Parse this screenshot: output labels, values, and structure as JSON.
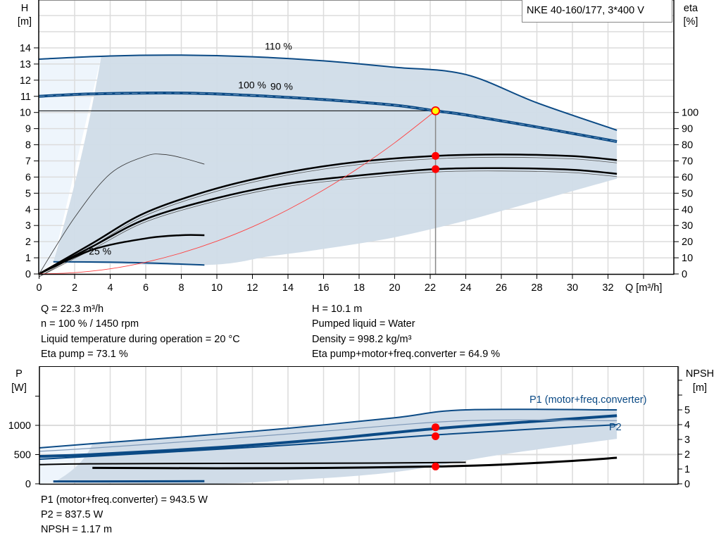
{
  "title": "NKE 40-160/177, 3*400 V",
  "colors": {
    "curve_blue": "#0b4a85",
    "band_fill": "#d0dce8",
    "light_fill": "#eef5fc",
    "duty_point": "#ff0000",
    "duty_point_fill": "#ffff00",
    "system_curve": "#ff4040"
  },
  "info_top": {
    "left": [
      "Q = 22.3 m³/h",
      "n = 100 % / 1450 rpm",
      "Liquid temperature during operation = 20 °C",
      "Eta pump = 73.1 %"
    ],
    "right": [
      "H = 10.1 m",
      "Pumped liquid = Water",
      "Density = 998.2 kg/m³",
      "Eta pump+motor+freq.converter = 64.9 %"
    ]
  },
  "info_bottom": [
    "P1 (motor+freq.converter) = 943.5 W",
    "P2 = 837.5 W",
    "NPSH = 1.17 m"
  ],
  "chart_data": [
    {
      "type": "line",
      "xlabel": "Q [m³/h]",
      "ylabel": "H [m]",
      "y2label": "eta [%]",
      "ylabel_parts": [
        "H",
        "[m]"
      ],
      "y2label_parts": [
        "eta",
        "[%]"
      ],
      "xlim": [
        0,
        35.7
      ],
      "ylim": [
        0,
        17
      ],
      "y2lim": [
        0,
        170
      ],
      "xticks": [
        0,
        2,
        4,
        6,
        8,
        10,
        12,
        14,
        16,
        18,
        20,
        22,
        24,
        26,
        28,
        30,
        32
      ],
      "yticks": [
        0,
        1,
        2,
        3,
        4,
        5,
        6,
        7,
        8,
        9,
        10,
        11,
        12,
        13,
        14
      ],
      "y2ticks": [
        0,
        10,
        20,
        30,
        40,
        50,
        60,
        70,
        80,
        90,
        100
      ],
      "grid": true,
      "annotations": [
        {
          "text": "110 %",
          "x": 12.7,
          "y": 13.9
        },
        {
          "text": "100 %",
          "x": 11.2,
          "y": 11.5
        },
        {
          "text": "90 %",
          "x": 11.3,
          "y": 11.4
        },
        {
          "text": "25 %",
          "x": 2.8,
          "y": 1.2
        }
      ],
      "series": [
        {
          "kind": "H",
          "speed": "110 %",
          "axis": "H",
          "x": [
            0,
            4,
            8,
            12,
            16,
            20,
            24,
            28,
            32.5
          ],
          "y": [
            13.3,
            13.5,
            13.55,
            13.45,
            13.2,
            12.8,
            12.35,
            10.6,
            8.9
          ]
        },
        {
          "kind": "H",
          "speed": "100 %",
          "axis": "H",
          "x": [
            0,
            3,
            8,
            12,
            16,
            20,
            22.3,
            24,
            28,
            32.5
          ],
          "y": [
            11.0,
            11.15,
            11.2,
            11.05,
            10.8,
            10.45,
            10.1,
            9.85,
            9.1,
            8.2
          ]
        },
        {
          "kind": "H",
          "speed": "25 %",
          "axis": "H",
          "x": [
            0.8,
            4,
            7,
            9.3
          ],
          "y": [
            0.75,
            0.73,
            0.65,
            0.55
          ]
        },
        {
          "kind": "eta pump",
          "axis": "eta",
          "x": [
            0,
            3,
            6,
            10,
            14,
            18,
            22.3,
            26,
            30,
            32.5
          ],
          "y": [
            0,
            19,
            38,
            53,
            63,
            69.5,
            73.1,
            74,
            73,
            70.5
          ]
        },
        {
          "kind": "eta pump+motor+freq.converter",
          "axis": "eta",
          "x": [
            0,
            3,
            6,
            10,
            14,
            18,
            22.3,
            26,
            30,
            32.5
          ],
          "y": [
            0,
            17,
            34,
            47,
            56,
            61,
            64.9,
            65.5,
            64.5,
            62
          ]
        },
        {
          "kind": "eta pump 25 %",
          "axis": "eta",
          "x": [
            0,
            3,
            6,
            8,
            9.3
          ],
          "y": [
            0,
            15,
            22,
            24,
            24
          ]
        },
        {
          "kind": "eta thin",
          "axis": "eta",
          "x": [
            0,
            2,
            4,
            6,
            7,
            8,
            9.3
          ],
          "y": [
            0,
            35,
            62,
            73,
            74,
            72,
            68
          ]
        },
        {
          "kind": "system curve",
          "axis": "H",
          "x": [
            0,
            2,
            4,
            6,
            8,
            10,
            12,
            14,
            16,
            18,
            20,
            22.3
          ],
          "y": [
            0,
            0.08,
            0.32,
            0.73,
            1.3,
            2.03,
            2.92,
            3.98,
            5.2,
            6.58,
            8.12,
            10.1
          ]
        }
      ],
      "operating_area": {
        "upper_x": [
          3.5,
          8,
          12,
          16,
          20,
          24,
          28,
          32.5
        ],
        "upper_y": [
          13.5,
          13.55,
          13.45,
          13.2,
          12.8,
          12.35,
          10.6,
          8.9
        ],
        "lower_x": [
          32.5,
          26,
          24,
          20,
          16,
          13,
          9.3,
          0.8
        ],
        "lower_y": [
          5.9,
          3.9,
          3.3,
          2.27,
          1.55,
          1.1,
          0.55,
          0.75
        ]
      },
      "duty_point": {
        "Q": 22.3,
        "H": 10.1,
        "eta_pump": 73.1,
        "eta_total": 64.9
      }
    },
    {
      "type": "line",
      "ylabel_parts": [
        "P",
        "[W]"
      ],
      "y2label_parts": [
        "NPSH",
        "[m]"
      ],
      "ylim": [
        0,
        2000
      ],
      "y2lim": [
        0,
        8
      ],
      "yticks": [
        0,
        500,
        1000
      ],
      "y2ticks": [
        0,
        1,
        2,
        3,
        4,
        5
      ],
      "grid": true,
      "legend": [
        {
          "text": "P1 (motor+freq.converter)"
        },
        {
          "text": "P2"
        }
      ],
      "series": [
        {
          "kind": "P1 110 %",
          "axis": "P",
          "x": [
            0,
            3,
            8,
            14,
            20,
            24,
            32.5
          ],
          "y": [
            615,
            687,
            800,
            950,
            1130,
            1265,
            1265
          ]
        },
        {
          "kind": "P1 (motor+freq.converter)",
          "axis": "P",
          "x": [
            0,
            3,
            10,
            16,
            22.3,
            28,
            32.5
          ],
          "y": [
            470,
            500,
            620,
            760,
            943.5,
            1070,
            1165
          ]
        },
        {
          "kind": "P2",
          "axis": "P",
          "x": [
            0,
            3,
            10,
            16,
            22.3,
            28,
            32.5
          ],
          "y": [
            420,
            470,
            590,
            700,
            837.5,
            940,
            1010
          ]
        },
        {
          "kind": "P2 110 %",
          "axis": "P",
          "x": [
            0,
            3,
            10,
            16,
            24,
            32.5
          ],
          "y": [
            555,
            610,
            760,
            900,
            1080,
            1080
          ]
        },
        {
          "kind": "P1 25 %",
          "axis": "P",
          "x": [
            0.8,
            9.3
          ],
          "y": [
            40,
            45
          ]
        },
        {
          "kind": "NPSH",
          "axis": "NPSH",
          "x": [
            3,
            10,
            16,
            22.3,
            26,
            30,
            32.5
          ],
          "y": [
            1.08,
            1.05,
            1.07,
            1.17,
            1.3,
            1.55,
            1.76
          ]
        },
        {
          "kind": "NPSH 110 %",
          "axis": "NPSH",
          "x": [
            0,
            3,
            10,
            18,
            24
          ],
          "y": [
            1.3,
            1.35,
            1.38,
            1.4,
            1.45
          ]
        }
      ],
      "operating_area": {
        "upper_x": [
          3,
          8,
          14,
          20,
          24,
          32.5
        ],
        "upper_y": [
          687,
          800,
          950,
          1130,
          1265,
          1265
        ],
        "lower_x": [
          32.5,
          26,
          20,
          14,
          9.3,
          0.8
        ],
        "lower_y": [
          770,
          500,
          200,
          60,
          0,
          20
        ]
      },
      "duty_point": {
        "P1": 943.5,
        "P2": 837.5,
        "NPSH": 1.17
      }
    }
  ]
}
